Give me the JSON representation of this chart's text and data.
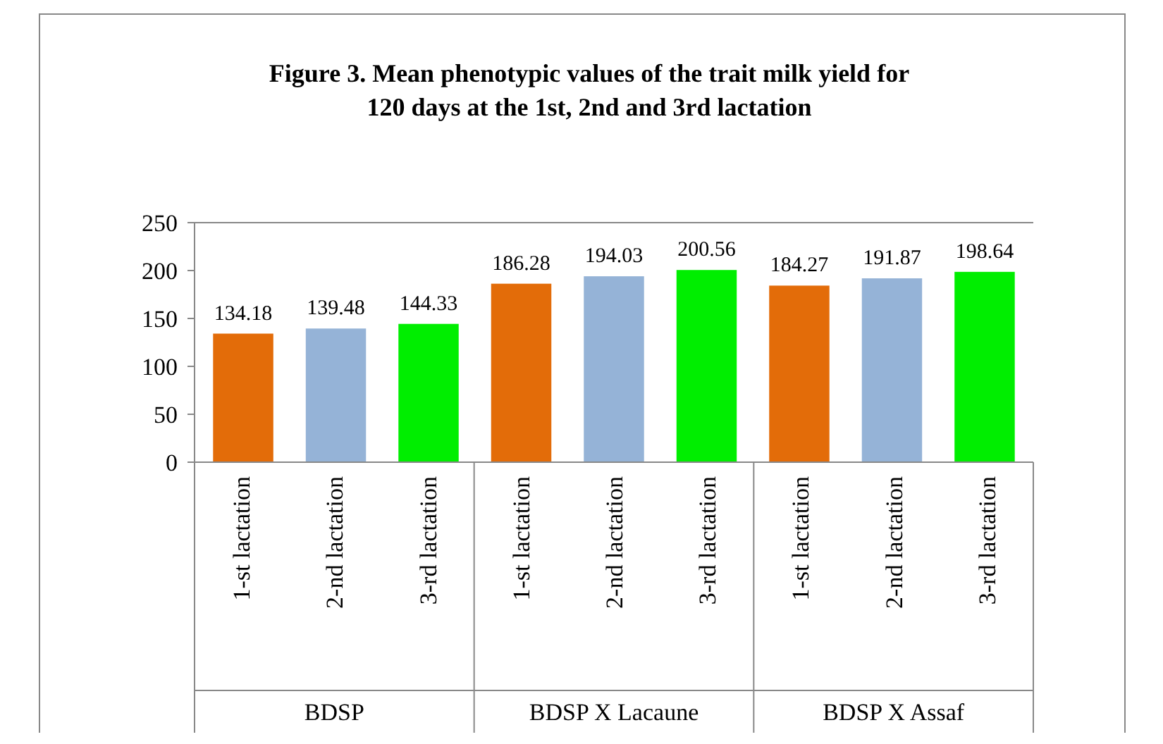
{
  "chart_data": {
    "type": "bar",
    "title": "Figure 3. Mean phenotypic values of the trait milk yield for 120 days at the 1st, 2nd and 3rd lactation",
    "categories": [
      "1-st lactation",
      "2-nd lactation",
      "3-rd lactation",
      "1-st lactation",
      "2-nd lactation",
      "3-rd lactation",
      "1-st lactation",
      "2-nd lactation",
      "3-rd lactation"
    ],
    "values": [
      134.18,
      139.48,
      144.33,
      186.28,
      194.03,
      200.56,
      184.27,
      191.87,
      198.64
    ],
    "colors": [
      "#e36c09",
      "#95b3d7",
      "#00ee00",
      "#e36c09",
      "#95b3d7",
      "#00ee00",
      "#e36c09",
      "#95b3d7",
      "#00ee00"
    ],
    "annotations": [
      "BDSP",
      "BDSP X Lacaune",
      "BDSP X Assaf"
    ],
    "ylim": [
      0,
      250
    ],
    "yticks": [
      0,
      50,
      100,
      150,
      200,
      250
    ],
    "data_labels": true
  }
}
